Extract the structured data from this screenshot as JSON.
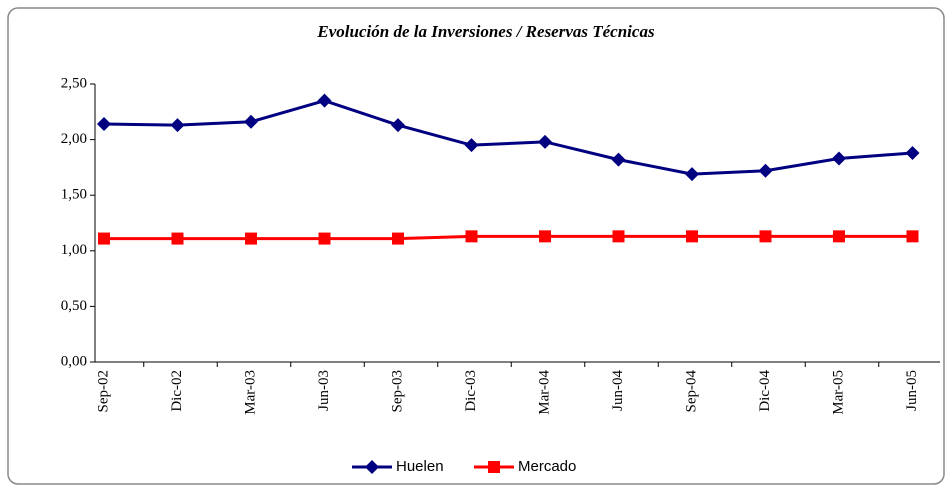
{
  "chart_data": {
    "type": "line",
    "title": "Evolución de la Inversiones / Reservas Técnicas",
    "categories": [
      "Sep-02",
      "Dic-02",
      "Mar-03",
      "Jun-03",
      "Sep-03",
      "Dic-03",
      "Mar-04",
      "Jun-04",
      "Sep-04",
      "Dic-04",
      "Mar-05",
      "Jun-05"
    ],
    "series": [
      {
        "name": "Huelen",
        "color": "#000080",
        "marker": "diamond",
        "values": [
          2.14,
          2.13,
          2.16,
          2.35,
          2.13,
          1.95,
          1.98,
          1.82,
          1.69,
          1.72,
          1.83,
          1.88
        ]
      },
      {
        "name": "Mercado",
        "color": "#ff0000",
        "marker": "square",
        "values": [
          1.11,
          1.11,
          1.11,
          1.11,
          1.11,
          1.13,
          1.13,
          1.13,
          1.13,
          1.13,
          1.13,
          1.13
        ]
      }
    ],
    "ylim": [
      0,
      2.5
    ],
    "yticks": [
      {
        "value": 0,
        "label": "0,00"
      },
      {
        "value": 0.5,
        "label": "0,50"
      },
      {
        "value": 1,
        "label": "1,00"
      },
      {
        "value": 1.5,
        "label": "1,50"
      },
      {
        "value": 2,
        "label": "2,00"
      },
      {
        "value": 2.5,
        "label": "2,50"
      }
    ],
    "grid": false,
    "legend": "bottom"
  }
}
